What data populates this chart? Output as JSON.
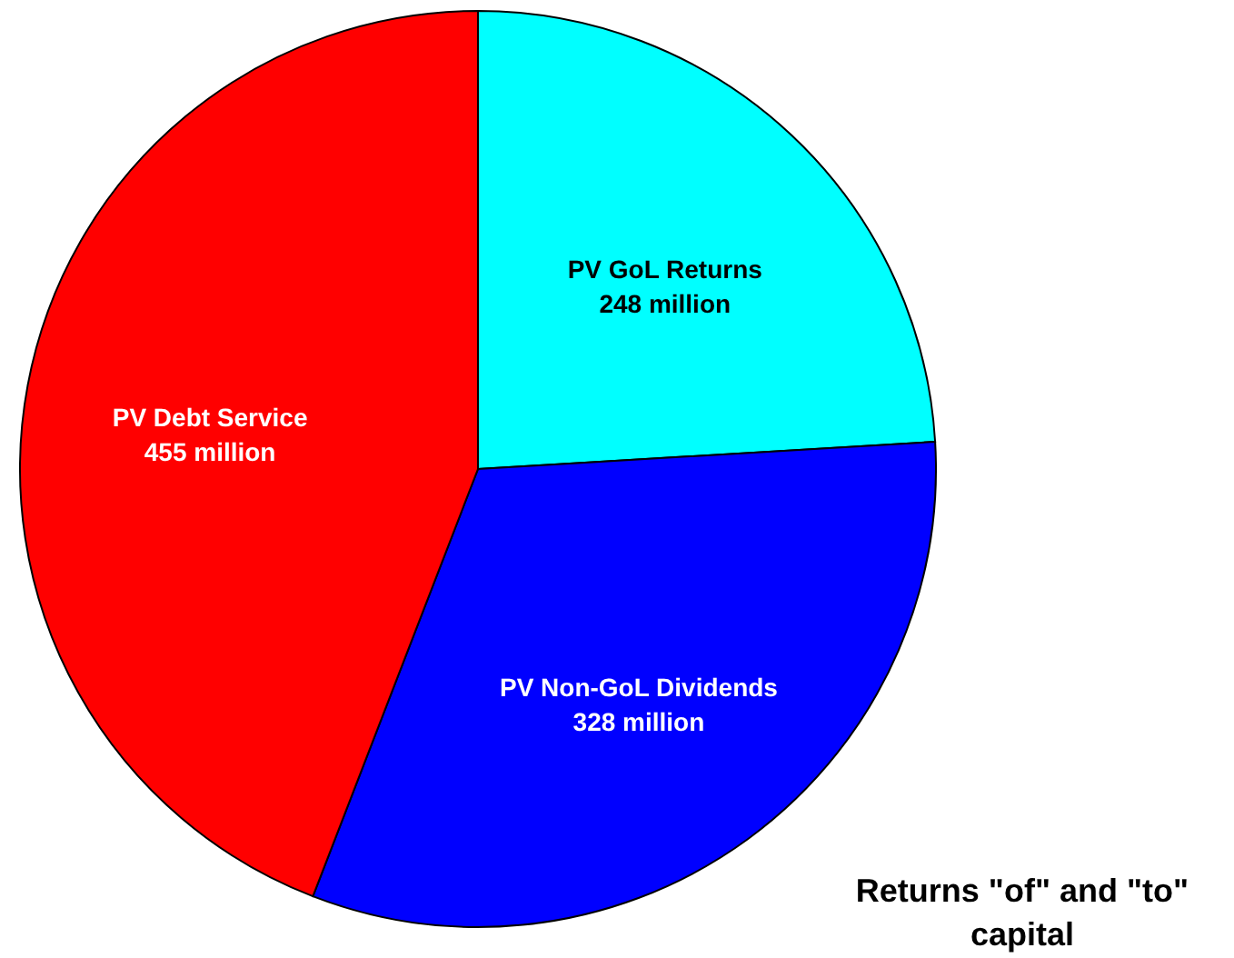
{
  "chart_data": {
    "type": "pie",
    "title": "Returns \"of\" and \"to\" capital",
    "categories": [
      "PV GoL Returns",
      "PV Non-GoL Dividends",
      "PV Debt Service"
    ],
    "values": [
      248,
      328,
      455
    ],
    "colors": [
      "#00ffff",
      "#0000ff",
      "#ff0000"
    ],
    "value_labels": [
      "248 million",
      "328 million",
      "455 million"
    ]
  }
}
